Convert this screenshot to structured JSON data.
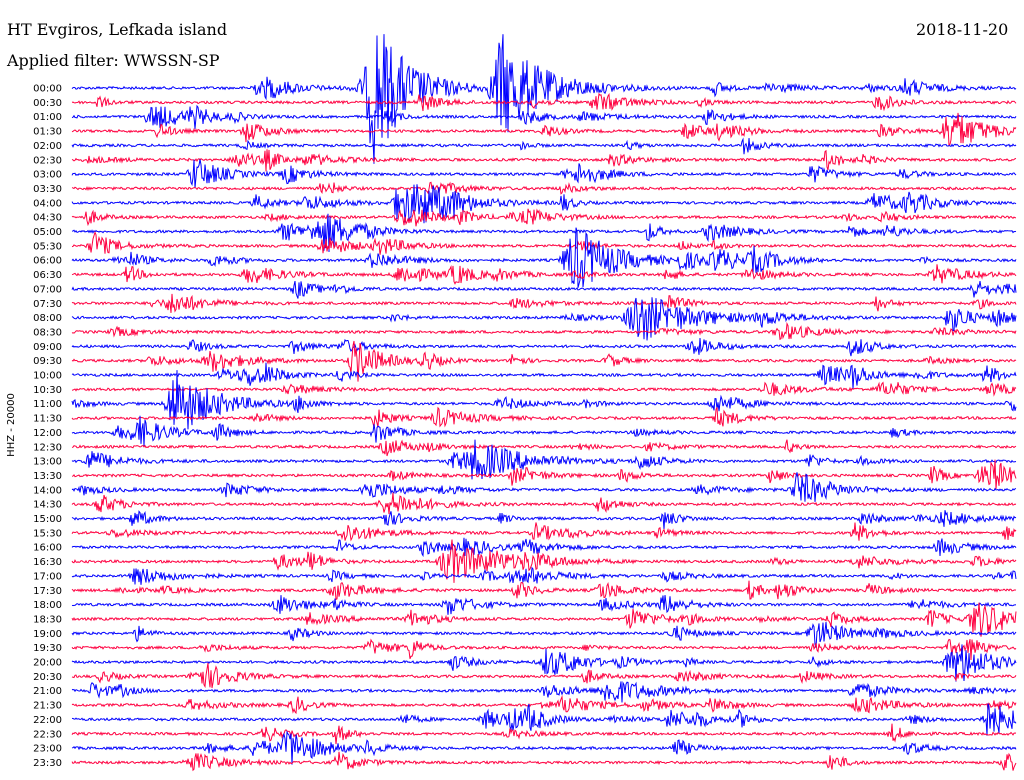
{
  "header": {
    "station": "HT Evgiros, Lefkada island",
    "filter": "Applied filter: WWSSN-SP",
    "date": "2018-11-20"
  },
  "chart_data": {
    "type": "line",
    "subtype": "helicorder",
    "ylabel": "HHZ - 20000",
    "rows": [
      "00:00",
      "00:30",
      "01:00",
      "01:30",
      "02:00",
      "02:30",
      "03:00",
      "03:30",
      "04:00",
      "04:30",
      "05:00",
      "05:30",
      "06:00",
      "06:30",
      "07:00",
      "07:30",
      "08:00",
      "08:30",
      "09:00",
      "09:30",
      "10:00",
      "10:30",
      "11:00",
      "11:30",
      "12:00",
      "12:30",
      "13:00",
      "13:30",
      "14:00",
      "14:30",
      "15:00",
      "15:30",
      "16:00",
      "16:30",
      "17:00",
      "17:30",
      "18:00",
      "18:30",
      "19:00",
      "19:30",
      "20:00",
      "20:30",
      "21:00",
      "21:30",
      "22:00",
      "22:30",
      "23:00",
      "23:30"
    ],
    "colors": [
      "#0000ff",
      "#ff0040"
    ],
    "events": [
      {
        "row": 0,
        "t": 0.455,
        "amp": 6,
        "len": 0.05
      },
      {
        "row": 0,
        "t": 0.32,
        "amp": 8,
        "len": 0.04
      },
      {
        "row": 3,
        "t": 0.93,
        "amp": 2.5,
        "len": 0.04
      },
      {
        "row": 6,
        "t": 0.13,
        "amp": 2,
        "len": 0.03
      },
      {
        "row": 8,
        "t": 0.35,
        "amp": 2.5,
        "len": 0.05
      },
      {
        "row": 10,
        "t": 0.27,
        "amp": 1.5,
        "len": 0.03
      },
      {
        "row": 12,
        "t": 0.53,
        "amp": 3,
        "len": 0.05
      },
      {
        "row": 16,
        "t": 0.6,
        "amp": 3,
        "len": 0.06
      },
      {
        "row": 19,
        "t": 0.3,
        "amp": 2.5,
        "len": 0.03
      },
      {
        "row": 22,
        "t": 0.11,
        "amp": 3,
        "len": 0.05
      },
      {
        "row": 24,
        "t": 0.07,
        "amp": 1.5,
        "len": 0.03
      },
      {
        "row": 26,
        "t": 0.43,
        "amp": 2,
        "len": 0.06
      },
      {
        "row": 28,
        "t": 0.77,
        "amp": 2,
        "len": 0.04
      },
      {
        "row": 33,
        "t": 0.4,
        "amp": 2.5,
        "len": 0.05
      },
      {
        "row": 34,
        "t": 0.07,
        "amp": 1,
        "len": 0.04
      },
      {
        "row": 37,
        "t": 0.96,
        "amp": 2,
        "len": 0.05
      },
      {
        "row": 40,
        "t": 0.94,
        "amp": 2,
        "len": 0.04
      },
      {
        "row": 42,
        "t": 0.57,
        "amp": 1.5,
        "len": 0.05
      },
      {
        "row": 44,
        "t": 0.97,
        "amp": 2,
        "len": 0.04
      },
      {
        "row": 46,
        "t": 0.23,
        "amp": 2,
        "len": 0.04
      }
    ]
  }
}
